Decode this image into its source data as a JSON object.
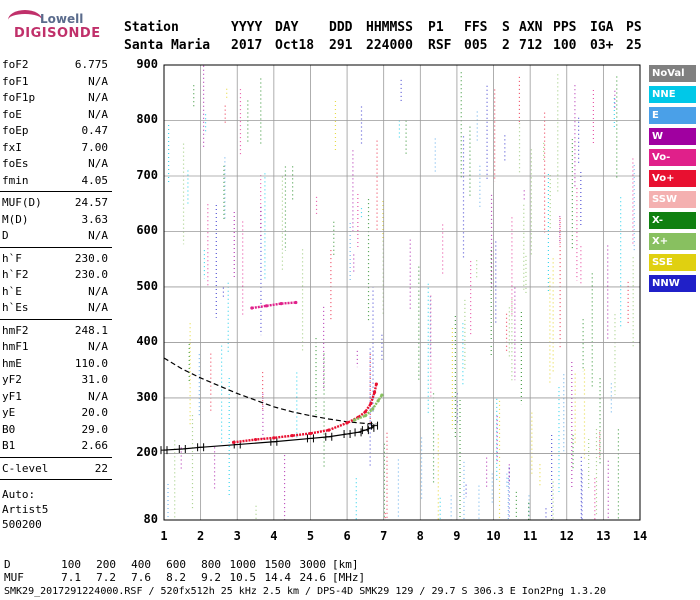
{
  "logo": {
    "line1": "Lowell",
    "line2": "DIGISONDE"
  },
  "header": {
    "station_label": "Station",
    "station_value": "Santa Maria",
    "cols": [
      {
        "k": "YYYY",
        "v": "2017"
      },
      {
        "k": "DAY",
        "v": "Oct18"
      },
      {
        "k": "DDD",
        "v": "291"
      },
      {
        "k": "HHMMSS",
        "v": "224000"
      },
      {
        "k": "P1",
        "v": "RSF"
      },
      {
        "k": "FFS",
        "v": "005"
      },
      {
        "k": "S",
        "v": "2"
      },
      {
        "k": "AXN",
        "v": "712"
      },
      {
        "k": "PPS",
        "v": "100"
      },
      {
        "k": "IGA",
        "v": "03+"
      },
      {
        "k": "PS",
        "v": "25"
      }
    ]
  },
  "params": {
    "group1": [
      {
        "k": "foF2",
        "v": "6.775"
      },
      {
        "k": "foF1",
        "v": "N/A"
      },
      {
        "k": "foF1p",
        "v": "N/A"
      },
      {
        "k": "foE",
        "v": "N/A"
      },
      {
        "k": "foEp",
        "v": "0.47"
      },
      {
        "k": "fxI",
        "v": "7.00"
      },
      {
        "k": "foEs",
        "v": "N/A"
      },
      {
        "k": "fmin",
        "v": "4.05"
      }
    ],
    "group2": [
      {
        "k": "MUF(D)",
        "v": "24.57"
      },
      {
        "k": "M(D)",
        "v": "3.63"
      },
      {
        "k": "D",
        "v": "N/A"
      }
    ],
    "group3": [
      {
        "k": "h`F",
        "v": "230.0"
      },
      {
        "k": "h`F2",
        "v": "230.0"
      },
      {
        "k": "h`E",
        "v": "N/A"
      },
      {
        "k": "h`Es",
        "v": "N/A"
      }
    ],
    "group4": [
      {
        "k": "hmF2",
        "v": "248.1"
      },
      {
        "k": "hmF1",
        "v": "N/A"
      },
      {
        "k": "hmE",
        "v": "110.0"
      },
      {
        "k": "yF2",
        "v": "31.0"
      },
      {
        "k": "yF1",
        "v": "N/A"
      },
      {
        "k": "yE",
        "v": "20.0"
      },
      {
        "k": "B0",
        "v": "29.0"
      },
      {
        "k": "B1",
        "v": "2.66"
      }
    ],
    "group5": [
      {
        "k": "C-level",
        "v": "22"
      }
    ],
    "autoscaling": [
      "Auto:",
      "Artist5",
      "500200"
    ]
  },
  "legend": [
    {
      "label": "NoVal",
      "color": "#808080"
    },
    {
      "label": "NNE",
      "color": "#00c8e8"
    },
    {
      "label": "E",
      "color": "#4aa0e8"
    },
    {
      "label": "W",
      "color": "#a000a0"
    },
    {
      "label": "Vo-",
      "color": "#e0208a"
    },
    {
      "label": "Vo+",
      "color": "#e81030"
    },
    {
      "label": "SSW",
      "color": "#f4b0b0"
    },
    {
      "label": "X-",
      "color": "#108010"
    },
    {
      "label": "X+",
      "color": "#88c060"
    },
    {
      "label": "SSE",
      "color": "#e0d010"
    },
    {
      "label": "NNW",
      "color": "#2020c8"
    }
  ],
  "chart_data": {
    "type": "scatter",
    "title": "",
    "xlabel": "",
    "ylabel": "",
    "xlim": [
      1,
      14
    ],
    "ylim": [
      80,
      900
    ],
    "xticks": [
      1,
      2,
      3,
      4,
      5,
      6,
      7,
      8,
      9,
      10,
      11,
      12,
      13,
      14
    ],
    "yticks": [
      80,
      200,
      300,
      400,
      500,
      600,
      700,
      800,
      900
    ],
    "grid": true,
    "series": [
      {
        "name": "Vo+",
        "color": "#e81030",
        "x": [
          2.9,
          3.5,
          4.0,
          4.5,
          5.0,
          5.5,
          6.0,
          6.3,
          6.5,
          6.65,
          6.75,
          6.8
        ],
        "y": [
          220,
          225,
          228,
          232,
          236,
          242,
          255,
          265,
          275,
          290,
          310,
          325
        ]
      },
      {
        "name": "X+",
        "color": "#88c060",
        "x": [
          6.2,
          6.5,
          6.7,
          6.85,
          6.95
        ],
        "y": [
          260,
          268,
          280,
          295,
          305
        ]
      },
      {
        "name": "Vo-",
        "color": "#e0208a",
        "x": [
          3.4,
          3.8,
          4.2,
          4.6
        ],
        "y": [
          462,
          466,
          470,
          472
        ]
      }
    ],
    "profile": {
      "x": [
        1.0,
        1.5,
        2.0,
        3.0,
        4.0,
        5.0,
        5.5,
        6.0,
        6.3,
        6.5,
        6.65,
        6.75
      ],
      "y": [
        206,
        208,
        211,
        216,
        221,
        227,
        230,
        235,
        238,
        242,
        246,
        250
      ]
    },
    "model": {
      "x": [
        1.0,
        1.5,
        2.0,
        2.5,
        3.0,
        3.5,
        4.0,
        4.5,
        5.0,
        5.5,
        6.0,
        6.5,
        6.8
      ],
      "y": [
        372,
        352,
        336,
        322,
        308,
        296,
        284,
        275,
        268,
        262,
        257,
        254,
        253
      ]
    }
  },
  "bottom": {
    "d_label": "D",
    "d_values": [
      "100",
      "200",
      "400",
      "600",
      "800",
      "1000",
      "1500",
      "3000"
    ],
    "d_unit": "[km]",
    "muf_label": "MUF",
    "muf_values": [
      "7.1",
      "7.2",
      "7.6",
      "8.2",
      "9.2",
      "10.5",
      "14.4",
      "24.6"
    ],
    "muf_unit": "[MHz]"
  },
  "footer": "SMK29_2017291224000.RSF / 520fx512h 25 kHz 2.5 km / DPS-4D SMK29 129 / 29.7 S 306.3 E Ion2Png 1.3.20"
}
